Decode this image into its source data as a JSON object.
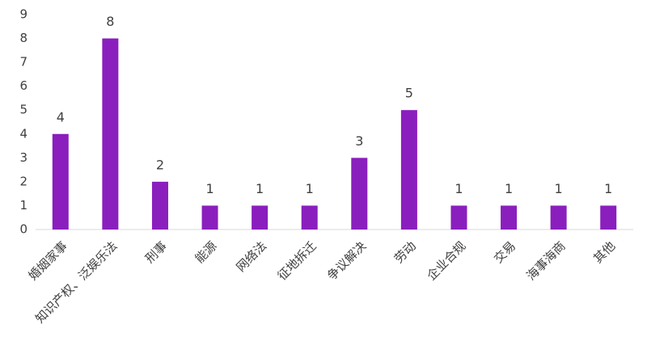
{
  "chart_data": {
    "type": "bar",
    "categories": [
      "婚姻家事",
      "知识产权、泛娱乐法",
      "刑事",
      "能源",
      "网络法",
      "征地拆迁",
      "争议解决",
      "劳动",
      "企业合规",
      "交易",
      "海事海商",
      "其他"
    ],
    "values": [
      4,
      8,
      2,
      1,
      1,
      1,
      3,
      5,
      1,
      1,
      1,
      1
    ],
    "color": "#8a1fbd",
    "ylim": [
      0,
      9
    ],
    "yticks": [
      0,
      1,
      2,
      3,
      4,
      5,
      6,
      7,
      8,
      9
    ],
    "grid": false
  }
}
